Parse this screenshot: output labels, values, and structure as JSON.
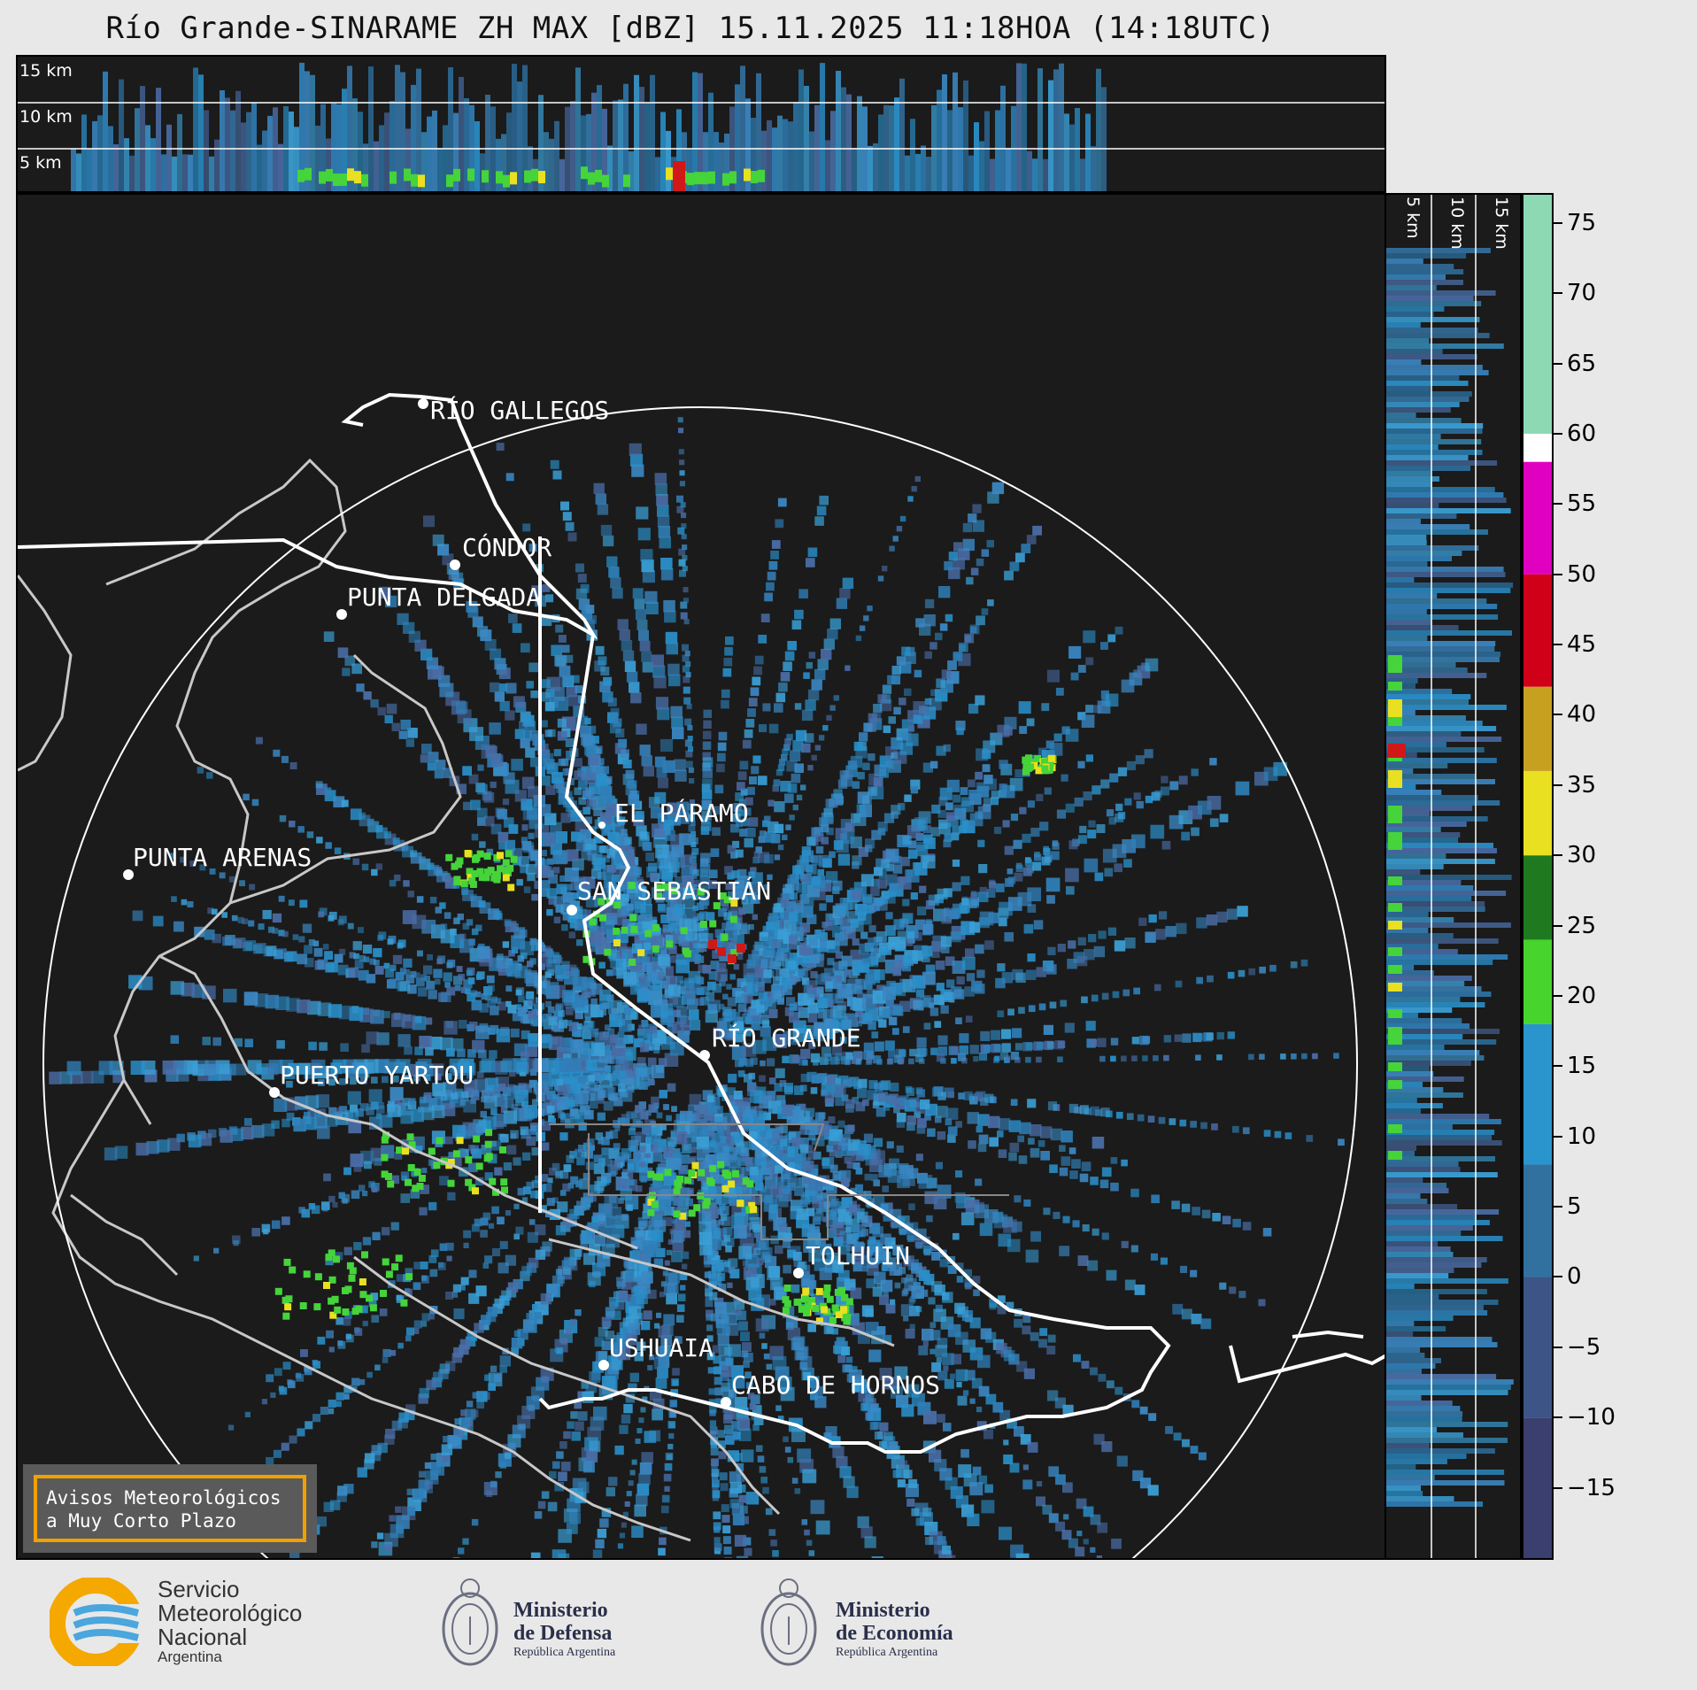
{
  "title": "Río Grande-SINARAME ZH MAX [dBZ] 15.11.2025 11:18HOA (14:18UTC)",
  "top_panel": {
    "alt_labels": [
      "15 km",
      "10 km",
      "5 km"
    ]
  },
  "side_panel": {
    "alt_labels": [
      "5 km",
      "10 km",
      "15 km"
    ]
  },
  "cities": [
    {
      "name": "RÍO GALLEGOS"
    },
    {
      "name": "CÓNDOR"
    },
    {
      "name": "PUNTA DELGADA"
    },
    {
      "name": "PUNTA ARENAS"
    },
    {
      "name": "EL PÁRAMO"
    },
    {
      "name": "SAN SEBASTIÁN"
    },
    {
      "name": "RÍO GRANDE"
    },
    {
      "name": "PUERTO YARTOU"
    },
    {
      "name": "TOLHUIN"
    },
    {
      "name": "USHUAIA"
    },
    {
      "name": "CABO DE HORNOS"
    }
  ],
  "colorbar": {
    "unit": "dBZ",
    "range": [
      -20,
      77
    ],
    "tick_labels": [
      "75",
      "70",
      "65",
      "60",
      "55",
      "50",
      "45",
      "40",
      "35",
      "30",
      "25",
      "20",
      "15",
      "10",
      "5",
      "0",
      "−5",
      "−10",
      "−15"
    ],
    "tick_values": [
      75,
      70,
      65,
      60,
      55,
      50,
      45,
      40,
      35,
      30,
      25,
      20,
      15,
      10,
      5,
      0,
      -5,
      -10,
      -15
    ],
    "bands": [
      {
        "from": -20,
        "to": -10,
        "color": "#3a3f6e"
      },
      {
        "from": -10,
        "to": 0,
        "color": "#3d5487"
      },
      {
        "from": 0,
        "to": 8,
        "color": "#31719f"
      },
      {
        "from": 8,
        "to": 18,
        "color": "#2a95cc"
      },
      {
        "from": 18,
        "to": 24,
        "color": "#47d42c"
      },
      {
        "from": 24,
        "to": 30,
        "color": "#1f7a1f"
      },
      {
        "from": 30,
        "to": 36,
        "color": "#e8e020"
      },
      {
        "from": 36,
        "to": 42,
        "color": "#c8a020"
      },
      {
        "from": 42,
        "to": 50,
        "color": "#d00018"
      },
      {
        "from": 50,
        "to": 58,
        "color": "#e000c0"
      },
      {
        "from": 58,
        "to": 60,
        "color": "#ffffff"
      },
      {
        "from": 60,
        "to": 77,
        "color": "#8cd9b4"
      }
    ]
  },
  "avisos": {
    "line1": "Avisos Meteorológicos",
    "line2": "a Muy Corto Plazo"
  },
  "logos": {
    "smn": {
      "line1": "Servicio",
      "line2": "Meteorológico",
      "line3": "Nacional",
      "line4": "Argentina"
    },
    "defensa": {
      "line1": "Ministerio",
      "line2": "de Defensa",
      "line3": "República Argentina"
    },
    "economia": {
      "line1": "Ministerio",
      "line2": "de Economía",
      "line3": "República Argentina"
    }
  },
  "colors": {
    "echo_low": "#2a8fc9",
    "echo_mid": "#45d43a",
    "echo_high": "#d01818",
    "coast": "#c8c8c8",
    "border": "#ffffff"
  }
}
